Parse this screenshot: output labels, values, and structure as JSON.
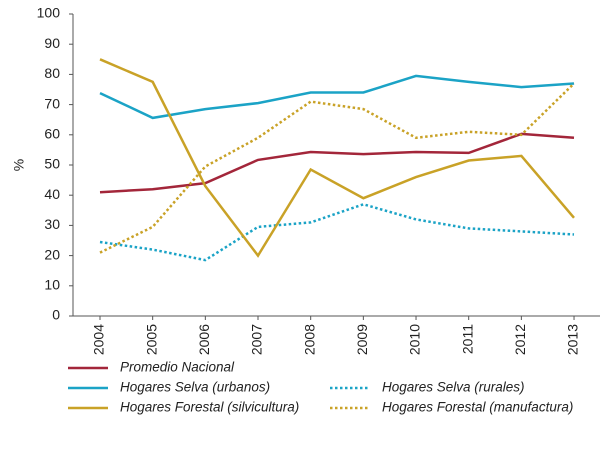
{
  "chart_data": {
    "type": "line",
    "y_label": "%",
    "categories": [
      "2004",
      "2005",
      "2006",
      "2007",
      "2008",
      "2009",
      "2010",
      "2011",
      "2012",
      "2013"
    ],
    "ylim": [
      0,
      100
    ],
    "yticks": [
      0,
      10,
      20,
      30,
      40,
      50,
      60,
      70,
      80,
      90,
      100
    ],
    "series": [
      {
        "name": "Promedio Nacional",
        "color": "#a3263a",
        "line_style": "solid",
        "values": [
          41,
          42,
          44,
          51.7,
          54.3,
          53.6,
          54.3,
          54,
          60.3,
          59
        ]
      },
      {
        "name": "Hogares Selva (urbanos)",
        "color": "#1ba3c6",
        "line_style": "solid",
        "values": [
          73.8,
          65.6,
          68.5,
          70.5,
          74,
          74,
          79.5,
          77.5,
          75.8,
          77
        ]
      },
      {
        "name": "Hogares Selva (rurales)",
        "color": "#1ba3c6",
        "line_style": "dotted",
        "values": [
          24.5,
          22,
          18.5,
          29.5,
          31,
          37,
          32,
          29,
          28,
          27
        ]
      },
      {
        "name": "Hogares Forestal (silvicultura)",
        "color": "#c9a227",
        "line_style": "solid",
        "values": [
          85,
          77.5,
          43,
          20,
          48.5,
          39,
          46,
          51.5,
          53,
          32.5
        ]
      },
      {
        "name": "Hogares Forestal (manufactura)",
        "color": "#c9a227",
        "line_style": "dotted",
        "values": [
          21,
          29.5,
          49.5,
          59,
          71,
          68.5,
          59,
          61,
          60,
          77
        ]
      }
    ]
  }
}
